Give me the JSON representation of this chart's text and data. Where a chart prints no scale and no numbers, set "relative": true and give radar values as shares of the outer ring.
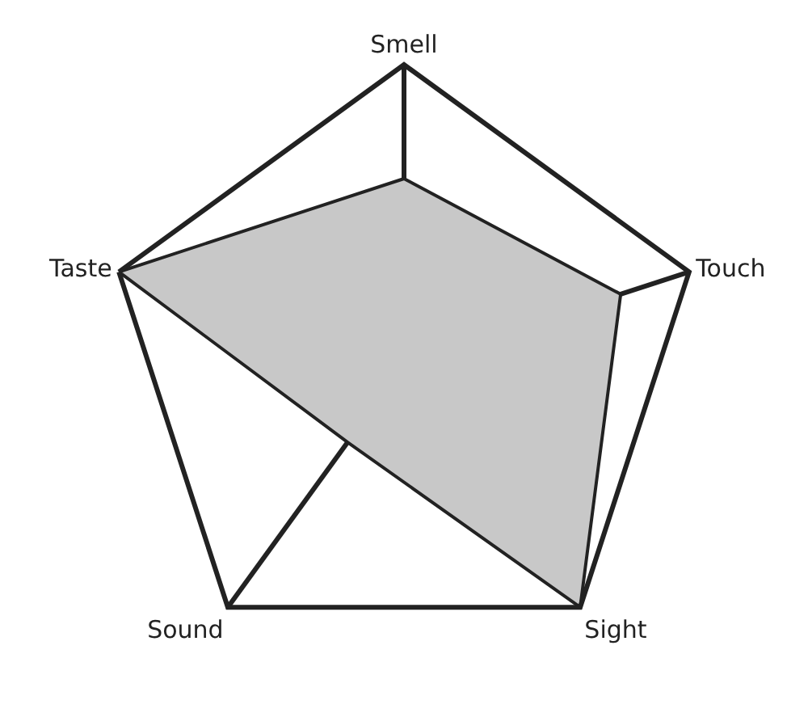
{
  "chart_data": {
    "type": "radar",
    "relative": true,
    "categories": [
      "Smell",
      "Touch",
      "Sight",
      "Sound",
      "Taste"
    ],
    "series": [
      {
        "color": "#c8c8c8",
        "values": [
          0.62,
          0.76,
          1,
          0.32,
          1
        ]
      }
    ],
    "grid": true
  }
}
